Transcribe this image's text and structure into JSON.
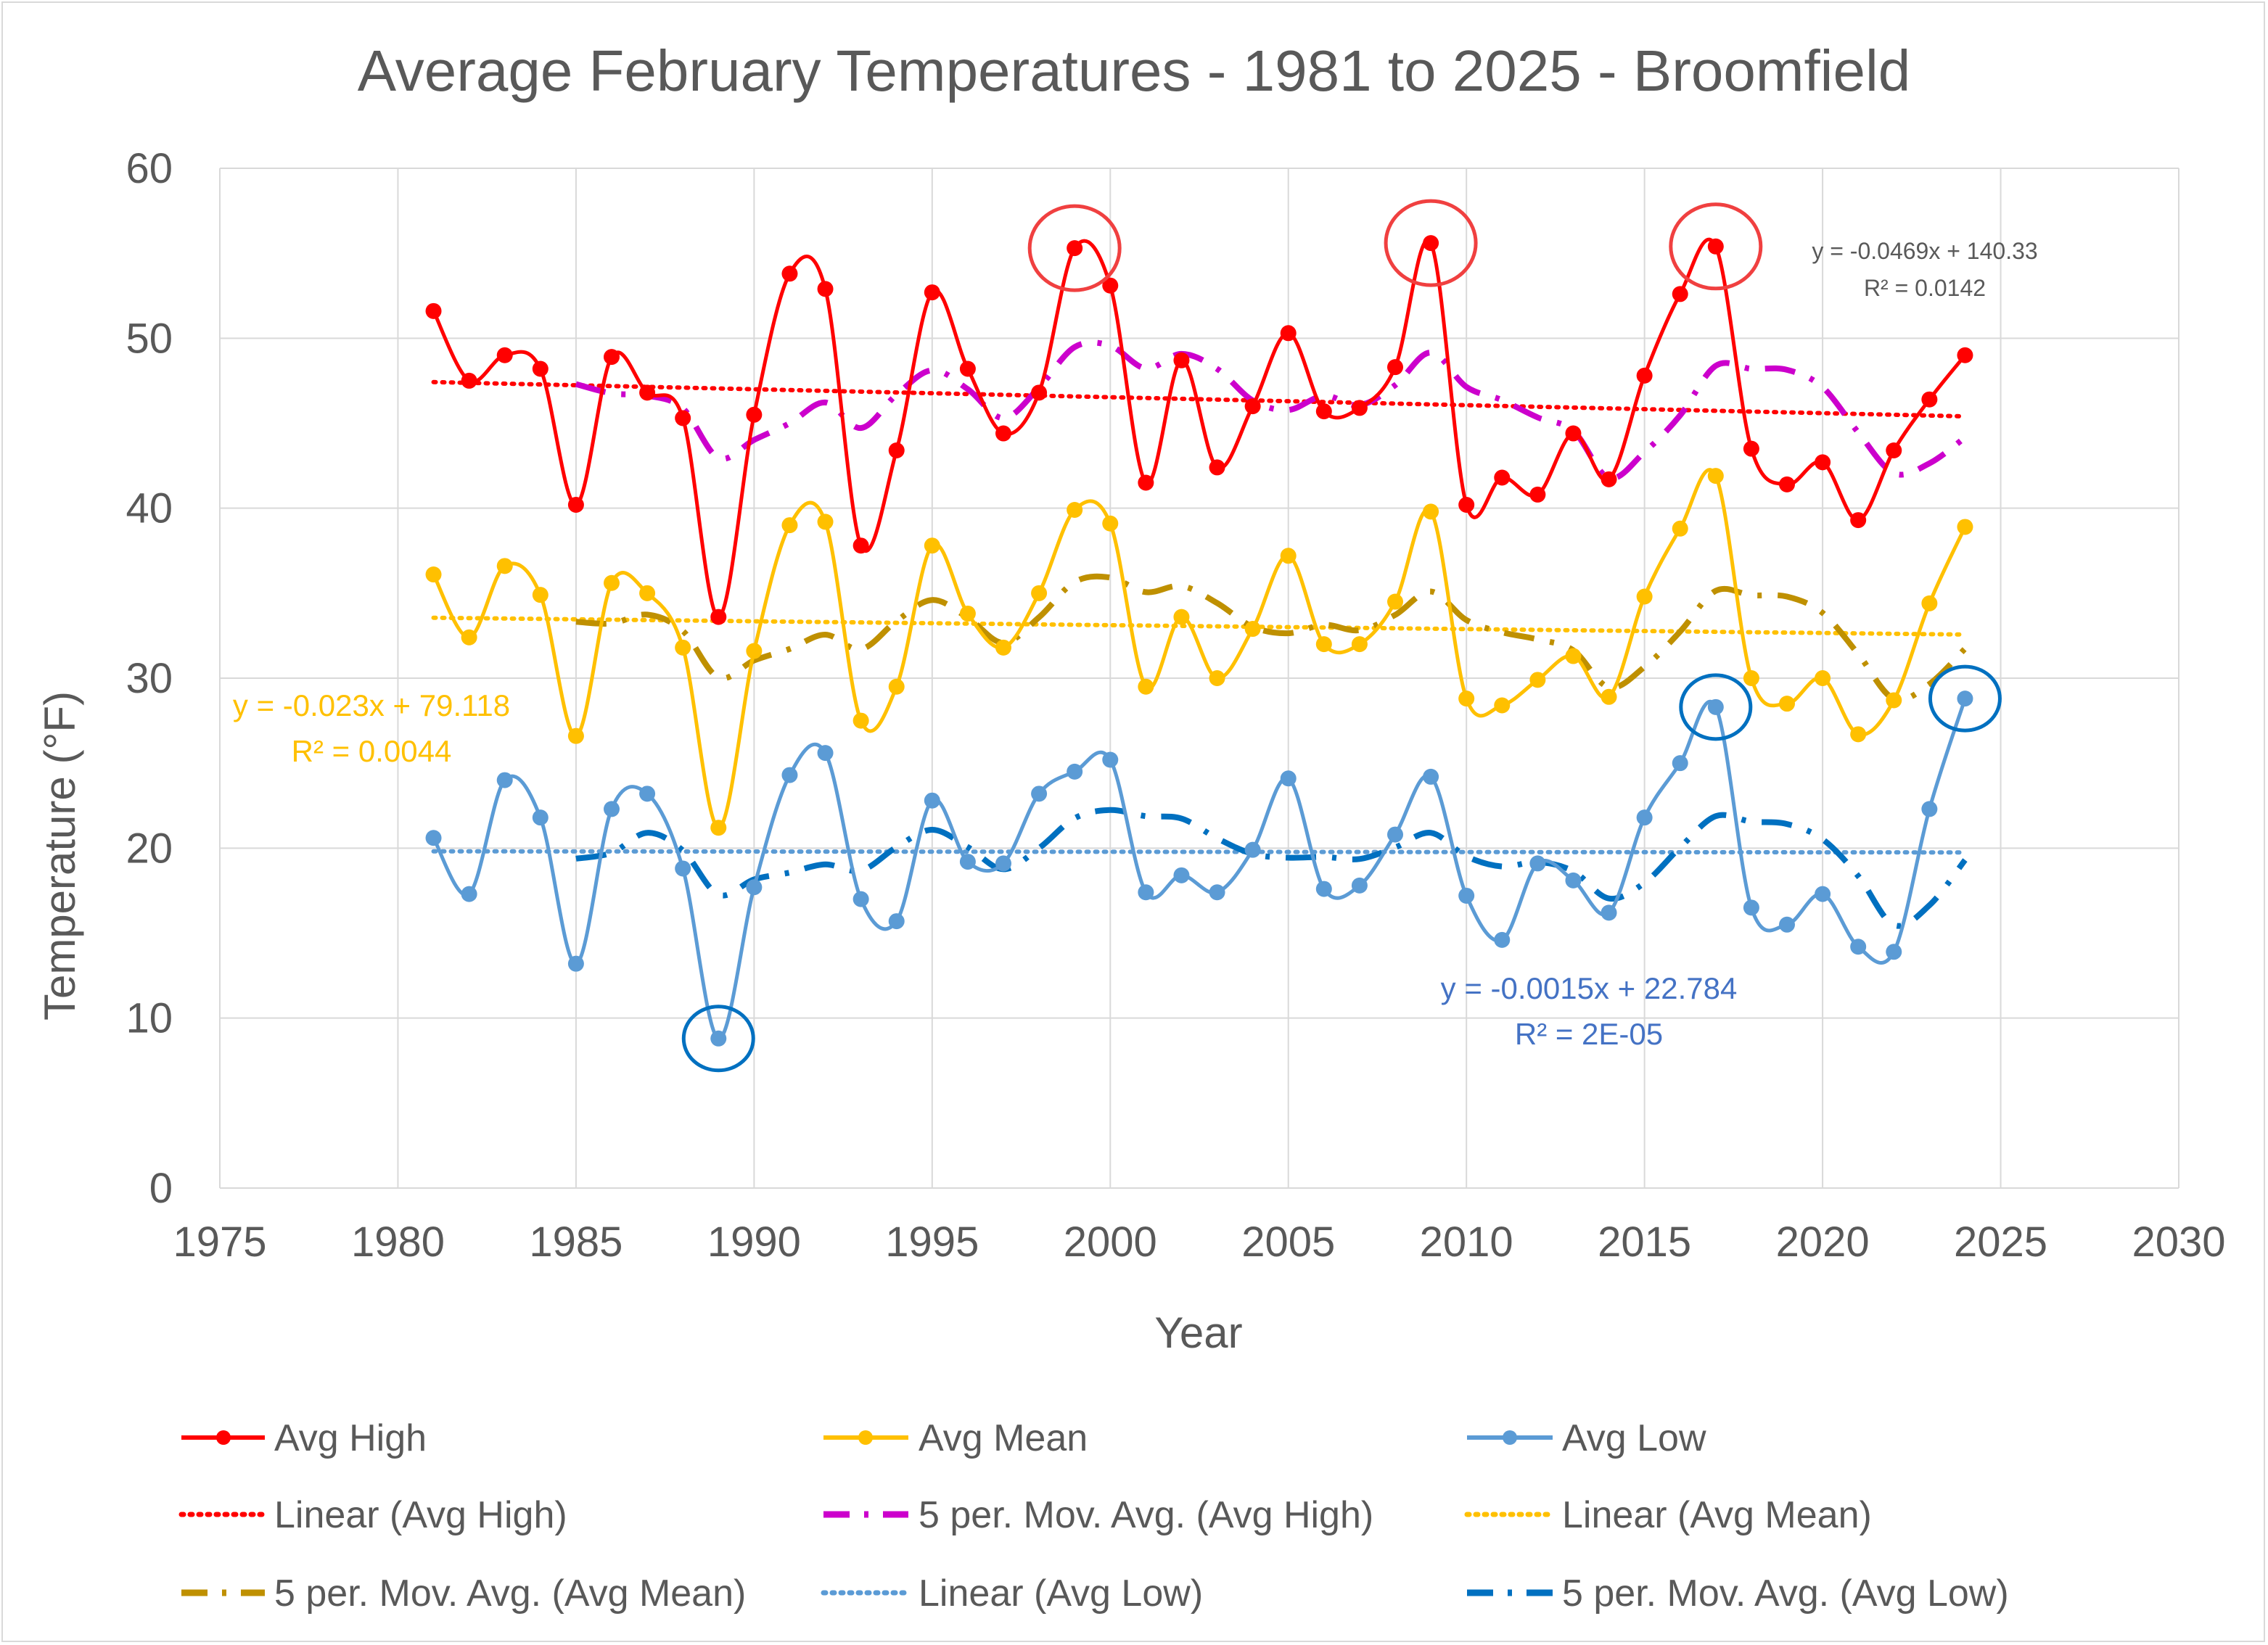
{
  "colors": {
    "high": "#FF0000",
    "mean": "#FFC000",
    "low": "#5B9BD5",
    "mov_high": "#CC00CC",
    "mov_mean": "#BF9000",
    "mov_low": "#0070C0",
    "gridline": "#d9d9d9",
    "circle_red": "#F04040",
    "circle_blue": "#0070C0",
    "eq_mean": "#FFC000",
    "eq_low": "#4472C4"
  },
  "chart_data": {
    "type": "scatter",
    "title": "Average February Temperatures - 1981 to 2025 - Broomfield",
    "xlabel": "Year",
    "ylabel": "Temperature (°F)",
    "xlim": [
      1975,
      2030
    ],
    "ylim": [
      0,
      60
    ],
    "xticks": [
      1975,
      1980,
      1985,
      1990,
      1995,
      2000,
      2005,
      2010,
      2015,
      2020,
      2025,
      2030
    ],
    "yticks": [
      0,
      10,
      20,
      30,
      40,
      50,
      60
    ],
    "grid": true,
    "x": [
      1981,
      1982,
      1983,
      1984,
      1985,
      1986,
      1987,
      1988,
      1989,
      1990,
      1991,
      1992,
      1993,
      1994,
      1995,
      1996,
      1997,
      1998,
      1999,
      2000,
      2001,
      2002,
      2003,
      2004,
      2005,
      2006,
      2007,
      2008,
      2009,
      2010,
      2011,
      2012,
      2013,
      2014,
      2015,
      2016,
      2017,
      2018,
      2019,
      2020,
      2021,
      2022,
      2023,
      2024
    ],
    "series": [
      {
        "name": "Avg High",
        "key": "high",
        "values": [
          51.6,
          47.5,
          49.0,
          48.2,
          40.2,
          48.9,
          46.8,
          45.3,
          33.6,
          45.5,
          53.8,
          52.9,
          37.8,
          43.4,
          52.7,
          48.2,
          44.4,
          46.8,
          55.3,
          53.1,
          41.5,
          48.7,
          42.4,
          46.0,
          50.3,
          45.7,
          45.9,
          48.3,
          55.6,
          40.2,
          41.8,
          40.8,
          44.4,
          41.7,
          47.8,
          52.6,
          55.4,
          43.5,
          41.4,
          42.7,
          39.3,
          43.4,
          46.4,
          49.0
        ]
      },
      {
        "name": "Avg Mean",
        "key": "mean",
        "values": [
          36.1,
          32.4,
          36.6,
          34.9,
          26.6,
          35.6,
          35.0,
          31.8,
          21.2,
          31.6,
          39.0,
          39.2,
          27.5,
          29.5,
          37.8,
          33.8,
          31.8,
          35.0,
          39.9,
          39.1,
          29.5,
          33.6,
          30.0,
          32.9,
          37.2,
          32.0,
          32.0,
          34.5,
          39.8,
          28.8,
          28.4,
          29.9,
          31.3,
          28.9,
          34.8,
          38.8,
          41.9,
          30.0,
          28.5,
          30.0,
          26.7,
          28.7,
          34.4,
          38.9
        ]
      },
      {
        "name": "Avg Low",
        "key": "low",
        "values": [
          20.6,
          17.3,
          24.0,
          21.8,
          13.2,
          22.3,
          23.2,
          18.8,
          8.8,
          17.7,
          24.3,
          25.6,
          17.0,
          15.7,
          22.8,
          19.2,
          19.1,
          23.2,
          24.5,
          25.2,
          17.4,
          18.4,
          17.4,
          19.9,
          24.1,
          17.6,
          17.8,
          20.8,
          24.2,
          17.2,
          14.6,
          19.1,
          18.1,
          16.2,
          21.8,
          25.0,
          28.3,
          16.5,
          15.5,
          17.3,
          14.2,
          13.9,
          22.3,
          28.8
        ]
      }
    ],
    "trendlines": [
      {
        "name": "Linear (Avg High)",
        "key": "lin_high",
        "slope": -0.0469,
        "intercept": 140.33,
        "equation": "y = -0.0469x + 140.33",
        "r2": "R² = 0.0142"
      },
      {
        "name": "Linear (Avg Mean)",
        "key": "lin_mean",
        "slope": -0.023,
        "intercept": 79.118,
        "equation": "y = -0.023x + 79.118",
        "r2": "R² = 0.0044"
      },
      {
        "name": "Linear (Avg Low)",
        "key": "lin_low",
        "slope": -0.0015,
        "intercept": 22.784,
        "equation": "y = -0.0015x + 22.784",
        "r2": "R² = 2E-05"
      }
    ],
    "moving_averages": [
      {
        "name": "5 per. Mov. Avg. (Avg High)",
        "key": "mov_high",
        "series": "high",
        "period": 5
      },
      {
        "name": "5 per. Mov. Avg. (Avg Mean)",
        "key": "mov_mean",
        "series": "mean",
        "period": 5
      },
      {
        "name": "5 per. Mov. Avg. (Avg Low)",
        "key": "mov_low",
        "series": "low",
        "period": 5
      }
    ],
    "annotations": [
      {
        "series": "high",
        "year": 1999,
        "kind": "circle"
      },
      {
        "series": "high",
        "year": 2009,
        "kind": "circle"
      },
      {
        "series": "high",
        "year": 2017,
        "kind": "circle"
      },
      {
        "series": "low",
        "year": 1989,
        "kind": "circle"
      },
      {
        "series": "low",
        "year": 2017,
        "kind": "circle"
      },
      {
        "series": "low",
        "year": 2024,
        "kind": "circle"
      }
    ],
    "legend": {
      "position": "bottom",
      "items": [
        "Avg High",
        "Avg Mean",
        "Avg Low",
        "Linear (Avg High)",
        "5 per. Mov. Avg. (Avg High)",
        "Linear (Avg Mean)",
        "5 per. Mov. Avg. (Avg Mean)",
        "Linear (Avg Low)",
        "5 per. Mov. Avg. (Avg Low)"
      ]
    }
  }
}
